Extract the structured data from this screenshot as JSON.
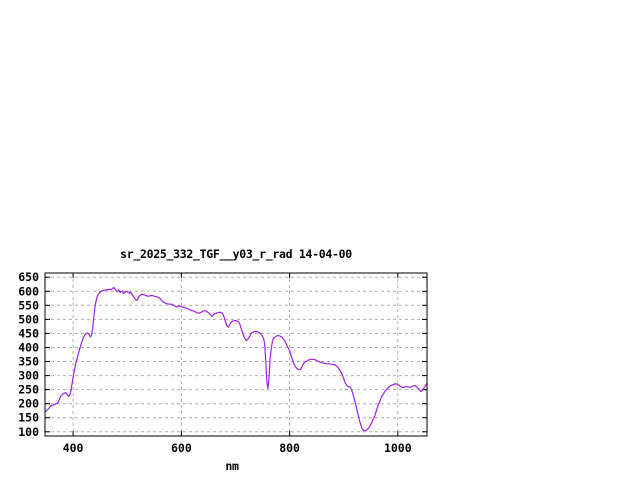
{
  "window": {
    "background_color": "#ffffff"
  },
  "chart_data": {
    "type": "line",
    "title": "sr_2025_332_TGF__y03_r_rad 14-04-00",
    "xlabel": "nm",
    "ylabel": "",
    "xlim": [
      348,
      1054
    ],
    "ylim": [
      85,
      665
    ],
    "x_ticks": [
      400,
      600,
      800,
      1000
    ],
    "y_ticks": [
      100,
      150,
      200,
      250,
      300,
      350,
      400,
      450,
      500,
      550,
      600,
      650
    ],
    "grid": true,
    "grid_style": "dashed",
    "legend_position": "none",
    "line_color": "#a020f0",
    "grid_color": "#b0b0b0",
    "frame_color": "#000000",
    "text_color": "#000000",
    "series": [
      {
        "name": "sr_2025_332_TGF__y03_r_rad",
        "points": [
          [
            348,
            170
          ],
          [
            350,
            174
          ],
          [
            352,
            178
          ],
          [
            354,
            181
          ],
          [
            356,
            185
          ],
          [
            358,
            190
          ],
          [
            360,
            193
          ],
          [
            362,
            194
          ],
          [
            364,
            196
          ],
          [
            366,
            198
          ],
          [
            368,
            199
          ],
          [
            370,
            201
          ],
          [
            372,
            205
          ],
          [
            374,
            213
          ],
          [
            376,
            223
          ],
          [
            378,
            229
          ],
          [
            380,
            233
          ],
          [
            382,
            236
          ],
          [
            384,
            238
          ],
          [
            386,
            239
          ],
          [
            388,
            237
          ],
          [
            390,
            230
          ],
          [
            392,
            227
          ],
          [
            394,
            232
          ],
          [
            396,
            248
          ],
          [
            398,
            272
          ],
          [
            400,
            294
          ],
          [
            402,
            315
          ],
          [
            404,
            335
          ],
          [
            406,
            351
          ],
          [
            408,
            365
          ],
          [
            410,
            380
          ],
          [
            412,
            394
          ],
          [
            414,
            407
          ],
          [
            416,
            420
          ],
          [
            418,
            431
          ],
          [
            420,
            439
          ],
          [
            422,
            445
          ],
          [
            424,
            449
          ],
          [
            426,
            452
          ],
          [
            428,
            450
          ],
          [
            430,
            444
          ],
          [
            432,
            438
          ],
          [
            434,
            443
          ],
          [
            436,
            465
          ],
          [
            438,
            505
          ],
          [
            440,
            540
          ],
          [
            442,
            562
          ],
          [
            444,
            578
          ],
          [
            446,
            587
          ],
          [
            448,
            593
          ],
          [
            450,
            597
          ],
          [
            452,
            600
          ],
          [
            455,
            603
          ],
          [
            458,
            604
          ],
          [
            461,
            605
          ],
          [
            464,
            606
          ],
          [
            467,
            607
          ],
          [
            470,
            606
          ],
          [
            473,
            610
          ],
          [
            475,
            613
          ],
          [
            477,
            610
          ],
          [
            479,
            604
          ],
          [
            481,
            599
          ],
          [
            483,
            602
          ],
          [
            485,
            604
          ],
          [
            487,
            596
          ],
          [
            489,
            599
          ],
          [
            491,
            601
          ],
          [
            493,
            592
          ],
          [
            495,
            595
          ],
          [
            497,
            598
          ],
          [
            500,
            600
          ],
          [
            502,
            596
          ],
          [
            504,
            593
          ],
          [
            506,
            597
          ],
          [
            508,
            592
          ],
          [
            510,
            586
          ],
          [
            512,
            580
          ],
          [
            514,
            574
          ],
          [
            516,
            570
          ],
          [
            518,
            568
          ],
          [
            520,
            574
          ],
          [
            522,
            582
          ],
          [
            524,
            586
          ],
          [
            526,
            588
          ],
          [
            528,
            589
          ],
          [
            530,
            588
          ],
          [
            533,
            586
          ],
          [
            536,
            584
          ],
          [
            539,
            582
          ],
          [
            542,
            584
          ],
          [
            545,
            585
          ],
          [
            548,
            584
          ],
          [
            551,
            582
          ],
          [
            554,
            581
          ],
          [
            557,
            578
          ],
          [
            560,
            575
          ],
          [
            563,
            568
          ],
          [
            566,
            562
          ],
          [
            569,
            559
          ],
          [
            572,
            557
          ],
          [
            575,
            555
          ],
          [
            578,
            554
          ],
          [
            581,
            554
          ],
          [
            584,
            553
          ],
          [
            587,
            549
          ],
          [
            590,
            545
          ],
          [
            592,
            544
          ],
          [
            594,
            547
          ],
          [
            596,
            549
          ],
          [
            598,
            546
          ],
          [
            601,
            544
          ],
          [
            604,
            543
          ],
          [
            607,
            542
          ],
          [
            610,
            539
          ],
          [
            613,
            537
          ],
          [
            616,
            534
          ],
          [
            619,
            531
          ],
          [
            622,
            530
          ],
          [
            625,
            528
          ],
          [
            628,
            524
          ],
          [
            631,
            522
          ],
          [
            634,
            523
          ],
          [
            637,
            526
          ],
          [
            640,
            529
          ],
          [
            643,
            531
          ],
          [
            646,
            529
          ],
          [
            649,
            525
          ],
          [
            652,
            521
          ],
          [
            654,
            516
          ],
          [
            656,
            511
          ],
          [
            658,
            514
          ],
          [
            660,
            518
          ],
          [
            663,
            521
          ],
          [
            666,
            523
          ],
          [
            669,
            525
          ],
          [
            672,
            525
          ],
          [
            675,
            523
          ],
          [
            677,
            518
          ],
          [
            679,
            508
          ],
          [
            681,
            495
          ],
          [
            683,
            482
          ],
          [
            685,
            475
          ],
          [
            687,
            472
          ],
          [
            689,
            479
          ],
          [
            691,
            487
          ],
          [
            693,
            492
          ],
          [
            695,
            494
          ],
          [
            697,
            495
          ],
          [
            700,
            496
          ],
          [
            702,
            495
          ],
          [
            704,
            493
          ],
          [
            706,
            491
          ],
          [
            708,
            483
          ],
          [
            710,
            470
          ],
          [
            712,
            460
          ],
          [
            714,
            448
          ],
          [
            716,
            438
          ],
          [
            718,
            430
          ],
          [
            720,
            425
          ],
          [
            722,
            428
          ],
          [
            724,
            432
          ],
          [
            726,
            438
          ],
          [
            728,
            446
          ],
          [
            730,
            452
          ],
          [
            732,
            454
          ],
          [
            734,
            456
          ],
          [
            736,
            457
          ],
          [
            738,
            457
          ],
          [
            740,
            456
          ],
          [
            742,
            454
          ],
          [
            744,
            453
          ],
          [
            746,
            450
          ],
          [
            748,
            445
          ],
          [
            750,
            440
          ],
          [
            752,
            432
          ],
          [
            754,
            412
          ],
          [
            756,
            350
          ],
          [
            758,
            282
          ],
          [
            760,
            254
          ],
          [
            761,
            270
          ],
          [
            762,
            290
          ],
          [
            763,
            320
          ],
          [
            764,
            360
          ],
          [
            766,
            395
          ],
          [
            768,
            419
          ],
          [
            770,
            431
          ],
          [
            772,
            435
          ],
          [
            774,
            438
          ],
          [
            776,
            441
          ],
          [
            778,
            443
          ],
          [
            780,
            442
          ],
          [
            782,
            441
          ],
          [
            784,
            439
          ],
          [
            786,
            437
          ],
          [
            788,
            431
          ],
          [
            790,
            427
          ],
          [
            792,
            421
          ],
          [
            794,
            413
          ],
          [
            796,
            404
          ],
          [
            798,
            396
          ],
          [
            800,
            389
          ],
          [
            802,
            378
          ],
          [
            804,
            364
          ],
          [
            806,
            352
          ],
          [
            808,
            342
          ],
          [
            810,
            335
          ],
          [
            812,
            328
          ],
          [
            814,
            324
          ],
          [
            816,
            322
          ],
          [
            818,
            321
          ],
          [
            820,
            321
          ],
          [
            822,
            327
          ],
          [
            824,
            336
          ],
          [
            826,
            343
          ],
          [
            828,
            348
          ],
          [
            830,
            350
          ],
          [
            832,
            352
          ],
          [
            834,
            354
          ],
          [
            836,
            356
          ],
          [
            838,
            357
          ],
          [
            840,
            358
          ],
          [
            843,
            358
          ],
          [
            846,
            357
          ],
          [
            849,
            355
          ],
          [
            852,
            352
          ],
          [
            855,
            349
          ],
          [
            858,
            347
          ],
          [
            861,
            345
          ],
          [
            864,
            344
          ],
          [
            867,
            343
          ],
          [
            870,
            342
          ],
          [
            873,
            342
          ],
          [
            876,
            341
          ],
          [
            879,
            340
          ],
          [
            882,
            339
          ],
          [
            885,
            337
          ],
          [
            888,
            332
          ],
          [
            891,
            325
          ],
          [
            894,
            316
          ],
          [
            897,
            305
          ],
          [
            900,
            290
          ],
          [
            903,
            273
          ],
          [
            906,
            264
          ],
          [
            909,
            261
          ],
          [
            912,
            259
          ],
          [
            914,
            252
          ],
          [
            916,
            242
          ],
          [
            918,
            230
          ],
          [
            920,
            213
          ],
          [
            922,
            198
          ],
          [
            924,
            183
          ],
          [
            926,
            167
          ],
          [
            928,
            150
          ],
          [
            930,
            135
          ],
          [
            932,
            123
          ],
          [
            934,
            112
          ],
          [
            936,
            106
          ],
          [
            938,
            104
          ],
          [
            940,
            104
          ],
          [
            942,
            106
          ],
          [
            944,
            109
          ],
          [
            946,
            114
          ],
          [
            948,
            118
          ],
          [
            950,
            125
          ],
          [
            952,
            133
          ],
          [
            954,
            142
          ],
          [
            956,
            150
          ],
          [
            958,
            160
          ],
          [
            960,
            172
          ],
          [
            962,
            184
          ],
          [
            964,
            196
          ],
          [
            966,
            205
          ],
          [
            968,
            214
          ],
          [
            970,
            224
          ],
          [
            972,
            230
          ],
          [
            974,
            237
          ],
          [
            976,
            243
          ],
          [
            978,
            248
          ],
          [
            980,
            252
          ],
          [
            982,
            257
          ],
          [
            984,
            260
          ],
          [
            986,
            263
          ],
          [
            988,
            265
          ],
          [
            990,
            267
          ],
          [
            992,
            268
          ],
          [
            994,
            270
          ],
          [
            996,
            271
          ],
          [
            998,
            269
          ],
          [
            1000,
            267
          ],
          [
            1002,
            266
          ],
          [
            1004,
            263
          ],
          [
            1006,
            260
          ],
          [
            1008,
            259
          ],
          [
            1010,
            258
          ],
          [
            1012,
            259
          ],
          [
            1014,
            260
          ],
          [
            1016,
            261
          ],
          [
            1018,
            260
          ],
          [
            1020,
            259
          ],
          [
            1022,
            258
          ],
          [
            1024,
            259
          ],
          [
            1026,
            260
          ],
          [
            1028,
            262
          ],
          [
            1030,
            264
          ],
          [
            1032,
            265
          ],
          [
            1034,
            261
          ],
          [
            1036,
            256
          ],
          [
            1038,
            254
          ],
          [
            1040,
            249
          ],
          [
            1042,
            245
          ],
          [
            1043,
            243
          ],
          [
            1045,
            247
          ],
          [
            1047,
            252
          ],
          [
            1049,
            258
          ],
          [
            1051,
            264
          ],
          [
            1053,
            270
          ],
          [
            1054,
            272
          ]
        ]
      }
    ]
  }
}
